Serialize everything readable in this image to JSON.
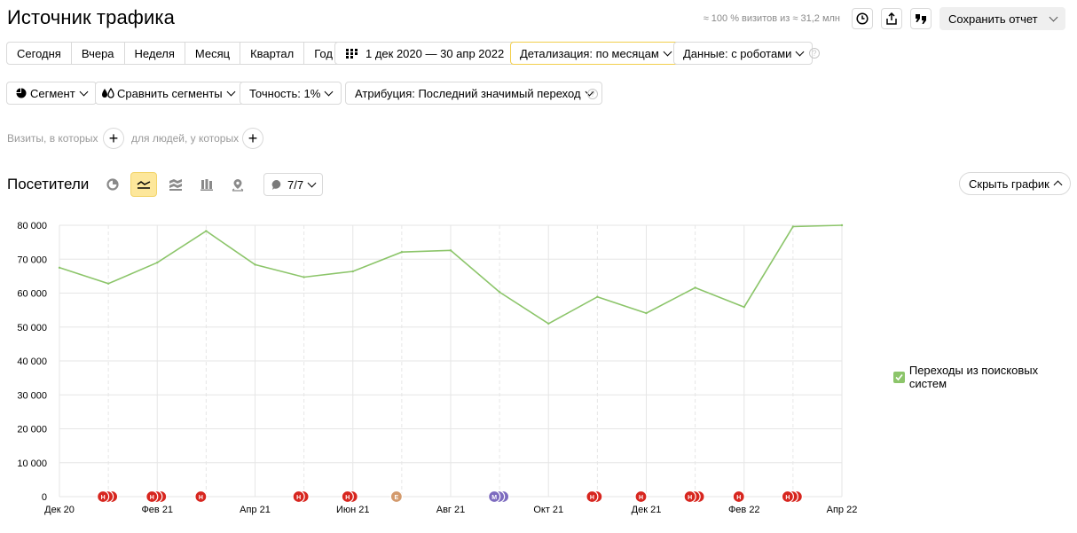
{
  "header": {
    "title": "Источник трафика",
    "visits_note": "≈ 100 % визитов из ≈ 31,2 млн",
    "save_label": "Сохранить отчет"
  },
  "periods": [
    "Сегодня",
    "Вчера",
    "Неделя",
    "Месяц",
    "Квартал",
    "Год"
  ],
  "date_range": "1 дек 2020 — 30 апр 2022",
  "detail_label": "Детализация: по месяцам",
  "data_label": "Данные: с роботами",
  "segment_label": "Сегмент",
  "compare_label": "Сравнить сегменты",
  "accuracy_label": "Точность: 1%",
  "attribution_label": "Атрибуция: Последний значимый переход",
  "filters": {
    "visits_label": "Визиты, в которых",
    "people_label": "для людей, у которых"
  },
  "section": {
    "title": "Посетители",
    "annotations_label": "7/7",
    "hide_chart_label": "Скрыть график"
  },
  "colors": {
    "series": "#8cc56a",
    "marker_red": "#d7261f",
    "marker_orange": "#d39a6d",
    "marker_purple": "#7d6bbf",
    "highlight": "#fde79b"
  },
  "chart_data": {
    "type": "line",
    "x": [
      "Дек 20",
      "Янв 21",
      "Фев 21",
      "Мар 21",
      "Апр 21",
      "Май 21",
      "Июн 21",
      "Июл 21",
      "Авг 21",
      "Сен 21",
      "Окт 21",
      "Ноя 21",
      "Дек 21",
      "Янв 22",
      "Фев 22",
      "Мар 22",
      "Апр 22"
    ],
    "x_tick_labels": [
      "Дек 20",
      "Фев 21",
      "Апр 21",
      "Июн 21",
      "Авг 21",
      "Окт 21",
      "Дек 21",
      "Фев 22",
      "Апр 22"
    ],
    "series": [
      {
        "name": "Переходы из поисковых систем",
        "values": [
          67500,
          62800,
          69000,
          78300,
          68400,
          64700,
          66400,
          72100,
          72600,
          60300,
          51000,
          58900,
          54100,
          61600,
          55900,
          79600,
          80000
        ]
      }
    ],
    "y_ticks": [
      "80 000",
      "70 000",
      "60 000",
      "50 000",
      "40 000",
      "30 000",
      "20 000",
      "10 000",
      "0"
    ],
    "ylim": [
      0,
      80000
    ],
    "grid": true,
    "legend": "right",
    "annotations": [
      {
        "index": 1,
        "letter": "Н",
        "count": 3,
        "color": "red"
      },
      {
        "index": 2,
        "letter": "Н",
        "count": 3,
        "color": "red"
      },
      {
        "index": 3,
        "letter": "Н",
        "count": 1,
        "color": "red"
      },
      {
        "index": 5,
        "letter": "Н",
        "count": 2,
        "color": "red"
      },
      {
        "index": 6,
        "letter": "Н",
        "count": 2,
        "color": "red"
      },
      {
        "index": 7,
        "letter": "Е",
        "count": 1,
        "color": "orange"
      },
      {
        "index": 9,
        "letter": "М",
        "count": 3,
        "color": "purple"
      },
      {
        "index": 11,
        "letter": "Н",
        "count": 2,
        "color": "red"
      },
      {
        "index": 12,
        "letter": "Н",
        "count": 1,
        "color": "red"
      },
      {
        "index": 13,
        "letter": "Н",
        "count": 3,
        "color": "red"
      },
      {
        "index": 14,
        "letter": "Н",
        "count": 1,
        "color": "red"
      },
      {
        "index": 15,
        "letter": "Н",
        "count": 3,
        "color": "red"
      }
    ]
  }
}
